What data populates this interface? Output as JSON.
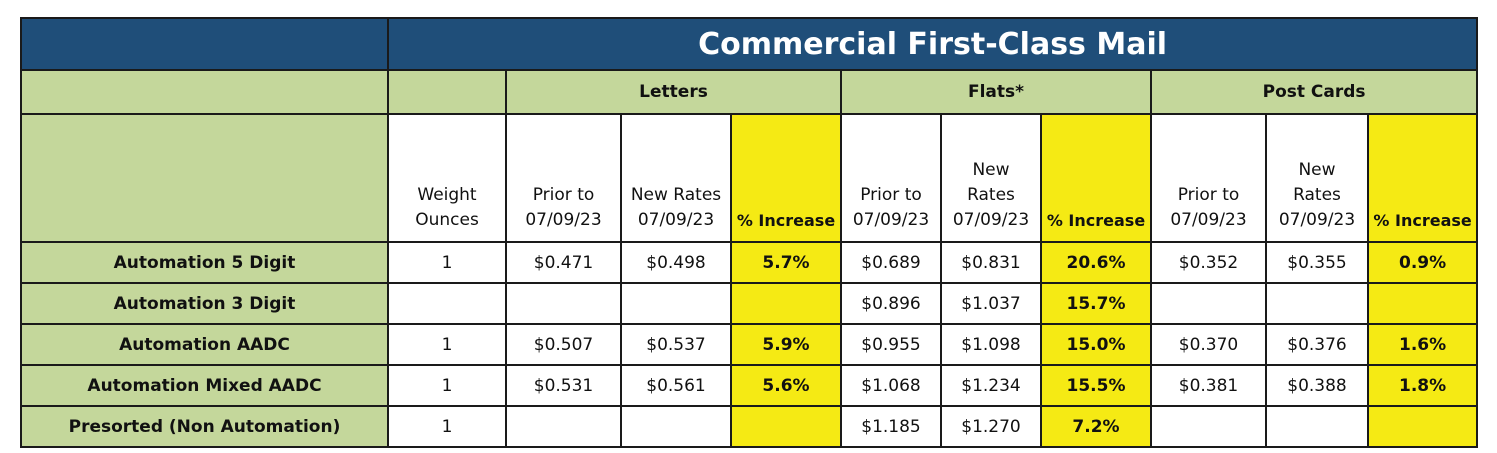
{
  "table": {
    "title": "Commercial First-Class Mail",
    "groups": [
      "Letters",
      "Flats*",
      "Post Cards"
    ],
    "columns": [
      [
        "Weight",
        "Ounces"
      ],
      [
        "Prior to",
        "07/09/23"
      ],
      [
        "New Rates",
        "07/09/23"
      ],
      [
        "% Increase"
      ],
      [
        "Prior to",
        "07/09/23"
      ],
      [
        "New",
        "Rates",
        "07/09/23"
      ],
      [
        "% Increase"
      ],
      [
        "Prior to",
        "07/09/23"
      ],
      [
        "New",
        "Rates",
        "07/09/23"
      ],
      [
        "% Increase"
      ]
    ],
    "rows": [
      [
        "Automation 5 Digit",
        "1",
        "$0.471",
        "$0.498",
        "5.7%",
        "$0.689",
        "$0.831",
        "20.6%",
        "$0.352",
        "$0.355",
        "0.9%"
      ],
      [
        "Automation 3 Digit",
        null,
        null,
        null,
        null,
        "$0.896",
        "$1.037",
        "15.7%",
        null,
        null,
        null
      ],
      [
        "Automation AADC",
        "1",
        "$0.507",
        "$0.537",
        "5.9%",
        "$0.955",
        "$1.098",
        "15.0%",
        "$0.370",
        "$0.376",
        "1.6%"
      ],
      [
        "Automation Mixed AADC",
        "1",
        "$0.531",
        "$0.561",
        "5.6%",
        "$1.068",
        "$1.234",
        "15.5%",
        "$0.381",
        "$0.388",
        "1.8%"
      ],
      [
        "Presorted (Non Automation)",
        "1",
        null,
        null,
        null,
        "$1.185",
        "$1.270",
        "7.2%",
        null,
        null,
        null
      ]
    ]
  }
}
